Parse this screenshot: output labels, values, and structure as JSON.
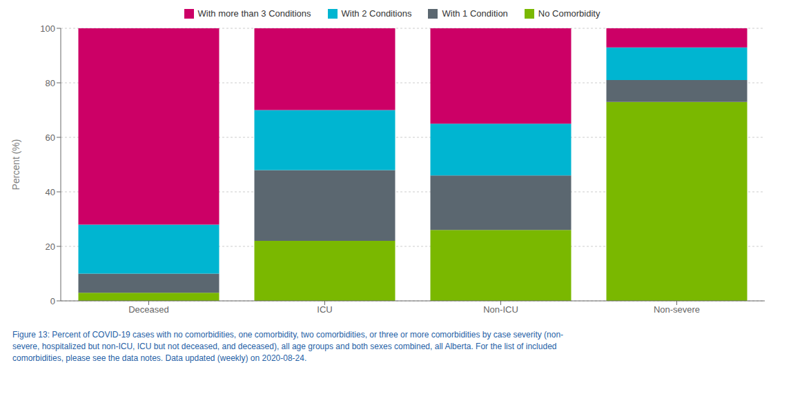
{
  "chart_data": {
    "type": "bar",
    "stacked": true,
    "categories": [
      "Deceased",
      "ICU",
      "Non-ICU",
      "Non-severe"
    ],
    "series": [
      {
        "name": "No Comorbidity",
        "color": "#7ab800",
        "values": [
          3,
          22,
          26,
          73
        ]
      },
      {
        "name": "With 1 Condition",
        "color": "#5b6770",
        "values": [
          7,
          26,
          20,
          8
        ]
      },
      {
        "name": "With 2 Conditions",
        "color": "#00b5d1",
        "values": [
          18,
          22,
          19,
          12
        ]
      },
      {
        "name": "With more than 3 Conditions",
        "color": "#cc0066",
        "values": [
          72,
          30,
          35,
          7
        ]
      }
    ],
    "y_label": "Percent (%)",
    "ylim": [
      0,
      100
    ],
    "yticks": [
      0,
      20,
      40,
      60,
      80,
      100
    ],
    "grid": true,
    "legend": "top",
    "annotations": [
      "Figure 13: Percent of COVID-19 cases with no comorbidities, one comorbidity, two comorbidities, or three or more comorbidities by case severity (non-",
      "severe, hospitalized but non-ICU, ICU but not deceased, and deceased), all age groups and both sexes combined, all Alberta. For the list of included",
      "comorbidities, please see the data notes. Data updated (weekly) on 2020-08-24."
    ]
  }
}
